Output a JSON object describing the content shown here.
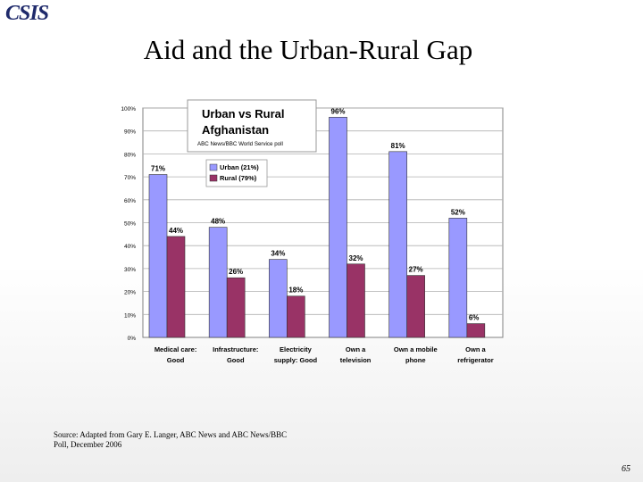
{
  "header": {
    "logo_text": "CSIS",
    "title": "Aid and the Urban-Rural Gap"
  },
  "chart_data": {
    "type": "bar",
    "title": "Urban vs Rural Afghanistan",
    "subtitle": "ABC News/BBC World Service poll",
    "categories": [
      [
        "Medical care:",
        "Good"
      ],
      [
        "Infrastructure:",
        "Good"
      ],
      [
        "Electricity",
        "supply: Good"
      ],
      [
        "Own a",
        "television"
      ],
      [
        "Own a mobile",
        "phone"
      ],
      [
        "Own a",
        "refrigerator"
      ]
    ],
    "series": [
      {
        "name": "Urban (21%)",
        "color": "#9999ff",
        "values": [
          71,
          48,
          34,
          96,
          81,
          52
        ],
        "labels": [
          "71%",
          "48%",
          "34%",
          "96%",
          "81%",
          "52%"
        ]
      },
      {
        "name": "Rural (79%)",
        "color": "#993366",
        "values": [
          44,
          26,
          18,
          32,
          27,
          6
        ],
        "labels": [
          "44%",
          "26%",
          "18%",
          "32%",
          "27%",
          "6%"
        ]
      }
    ],
    "y_ticks": [
      "0%",
      "10%",
      "20%",
      "30%",
      "40%",
      "50%",
      "60%",
      "70%",
      "80%",
      "90%",
      "100%"
    ],
    "ylim": [
      0,
      100
    ],
    "grid": true,
    "legend": "top-left"
  },
  "footer": {
    "source_line1": "Source: Adapted from Gary E. Langer, ABC News and ABC News/BBC",
    "source_line2": "Poll, December 2006",
    "page_number": "65"
  }
}
